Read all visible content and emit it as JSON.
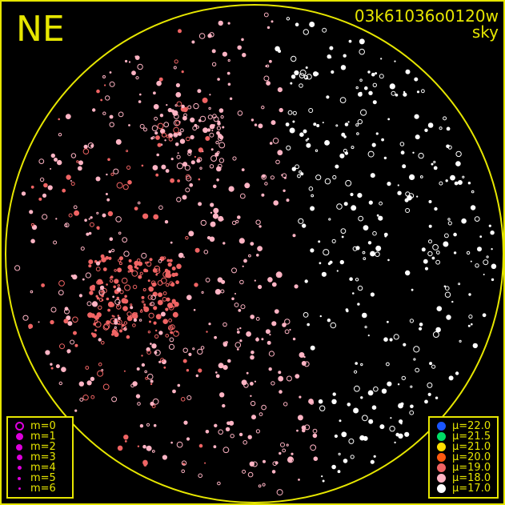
{
  "header": {
    "direction": "NE",
    "frame_id": "03k61036o0120w",
    "frame_type": "sky"
  },
  "colors": {
    "frame": "#e6e600",
    "background": "#000000"
  },
  "magnitude_legend": [
    {
      "label": "m=0",
      "style": "ring"
    },
    {
      "label": "m=1",
      "style": "filled"
    },
    {
      "label": "m=2",
      "style": "filled"
    },
    {
      "label": "m=3",
      "style": "filled"
    },
    {
      "label": "m=4",
      "style": "filled"
    },
    {
      "label": "m=5",
      "style": "filled"
    },
    {
      "label": "m=6",
      "style": "filled"
    }
  ],
  "magnitude_legend_color": "#dd00dd",
  "sky_brightness_legend": [
    {
      "label": "μ=22.0",
      "color": "#1a55ff"
    },
    {
      "label": "μ=21.5",
      "color": "#00dd66"
    },
    {
      "label": "μ=21.0",
      "color": "#ffdd00"
    },
    {
      "label": "μ=20.0",
      "color": "#ff5a10"
    },
    {
      "label": "μ=19.0",
      "color": "#f06464"
    },
    {
      "label": "μ=18.0",
      "color": "#ffb4c4"
    },
    {
      "label": "μ=17.0",
      "color": "#ffffff"
    }
  ]
}
